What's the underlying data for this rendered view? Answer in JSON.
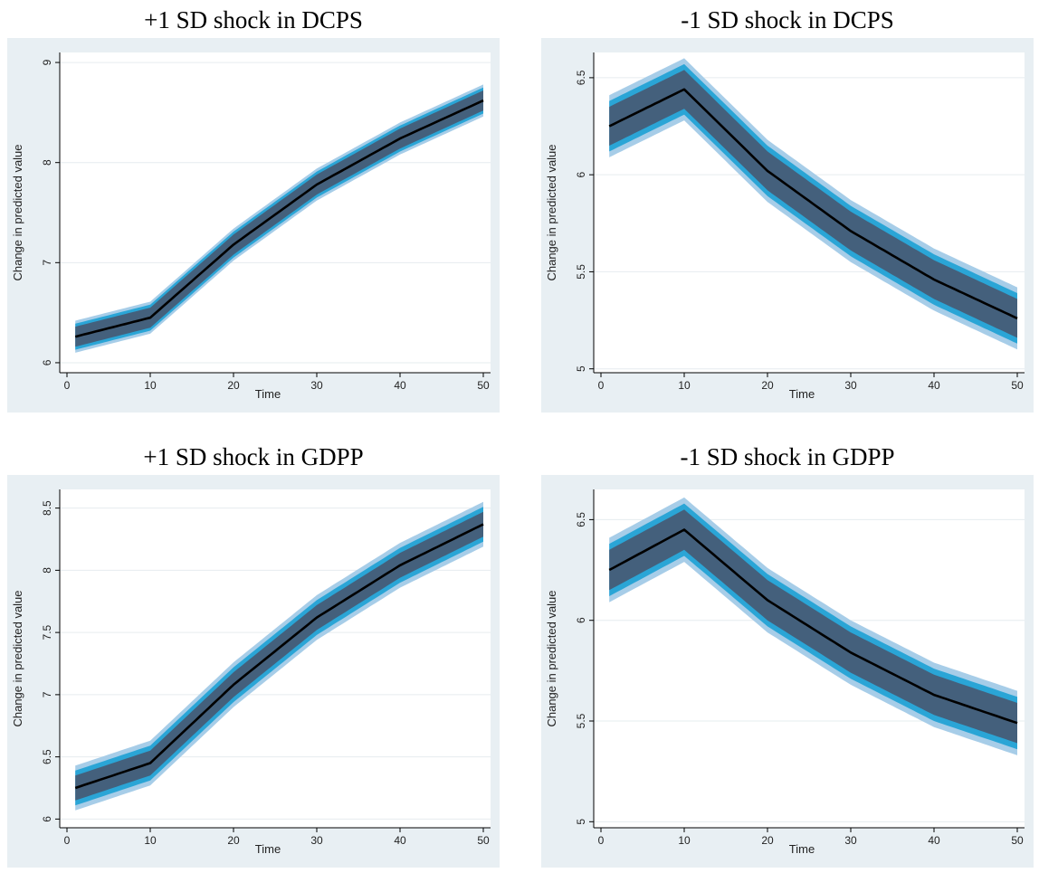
{
  "colors": {
    "panel_bg": "#e8eff3",
    "plot_bg": "#ffffff",
    "grid": "#e6ecef",
    "band_outer": "#a7cde8",
    "band_mid": "#2aa5d6",
    "band_inner": "#44607c",
    "line": "#000000"
  },
  "chart_data": [
    {
      "type": "line",
      "title": "+1 SD shock in DCPS",
      "xlabel": "Time",
      "ylabel": "Change in predicted value",
      "xlim": [
        0,
        50
      ],
      "ylim": [
        5.9,
        9.1
      ],
      "xticks": [
        0,
        10,
        20,
        30,
        40,
        50
      ],
      "yticks": [
        6,
        7,
        8,
        9
      ],
      "x": [
        1,
        10,
        20,
        30,
        40,
        50
      ],
      "y": [
        6.26,
        6.45,
        7.18,
        7.78,
        8.24,
        8.62
      ],
      "bands": {
        "inner": 0.1,
        "mid": 0.13,
        "outer": 0.16
      },
      "grid": true,
      "legend": "none"
    },
    {
      "type": "line",
      "title": "-1 SD shock in DCPS",
      "xlabel": "Time",
      "ylabel": "Change in predicted value",
      "xlim": [
        0,
        50
      ],
      "ylim": [
        4.98,
        6.63
      ],
      "xticks": [
        0,
        10,
        20,
        30,
        40,
        50
      ],
      "yticks": [
        5,
        5.5,
        6,
        6.5
      ],
      "x": [
        1,
        10,
        20,
        30,
        40,
        50
      ],
      "y": [
        6.25,
        6.44,
        6.02,
        5.71,
        5.46,
        5.26
      ],
      "bands": {
        "inner": 0.1,
        "mid": 0.13,
        "outer": 0.16
      },
      "grid": true,
      "legend": "none"
    },
    {
      "type": "line",
      "title": "+1 SD shock in GDPP",
      "xlabel": "Time",
      "ylabel": "Change in predicted value",
      "xlim": [
        0,
        50
      ],
      "ylim": [
        5.93,
        8.65
      ],
      "xticks": [
        0,
        10,
        20,
        30,
        40,
        50
      ],
      "yticks": [
        6,
        6.5,
        7,
        7.5,
        8,
        8.5
      ],
      "x": [
        1,
        10,
        20,
        30,
        40,
        50
      ],
      "y": [
        6.25,
        6.45,
        7.08,
        7.62,
        8.04,
        8.37
      ],
      "bands": {
        "inner": 0.1,
        "mid": 0.14,
        "outer": 0.18
      },
      "grid": true,
      "legend": "none"
    },
    {
      "type": "line",
      "title": "-1 SD shock in GDPP",
      "xlabel": "Time",
      "ylabel": "Change in predicted value",
      "xlim": [
        0,
        50
      ],
      "ylim": [
        4.97,
        6.65
      ],
      "xticks": [
        0,
        10,
        20,
        30,
        40,
        50
      ],
      "yticks": [
        5,
        5.5,
        6,
        6.5
      ],
      "x": [
        1,
        10,
        20,
        30,
        40,
        50
      ],
      "y": [
        6.25,
        6.45,
        6.1,
        5.84,
        5.63,
        5.49
      ],
      "bands": {
        "inner": 0.1,
        "mid": 0.13,
        "outer": 0.16
      },
      "grid": true,
      "legend": "none"
    }
  ]
}
